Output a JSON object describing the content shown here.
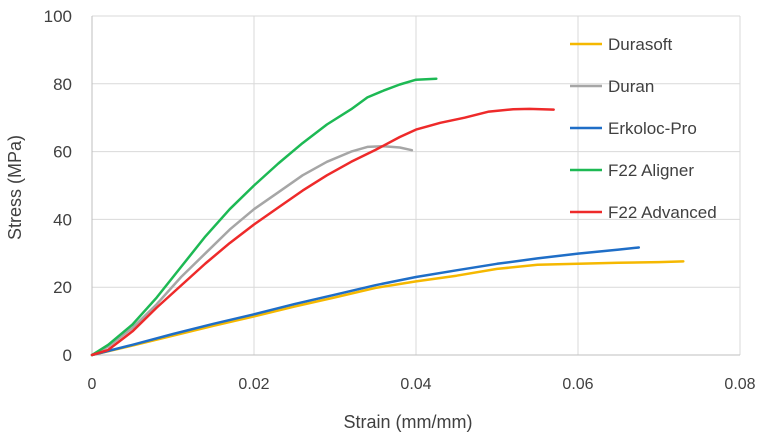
{
  "chart_data": {
    "type": "line",
    "title": "",
    "xlabel": "Strain (mm/mm)",
    "ylabel": "Stress (MPa)",
    "xlim": [
      0,
      0.08
    ],
    "ylim": [
      0,
      100
    ],
    "x_ticks": [
      0,
      0.02,
      0.04,
      0.06,
      0.08
    ],
    "x_tick_labels": [
      "0",
      "0.02",
      "0.04",
      "0.06",
      "0.08"
    ],
    "y_ticks": [
      0,
      20,
      40,
      60,
      80,
      100
    ],
    "y_tick_labels": [
      "0",
      "20",
      "40",
      "60",
      "80",
      "100"
    ],
    "grid": true,
    "legend": "right",
    "series": [
      {
        "name": "Durasoft",
        "color": "#f5b800",
        "x": [
          0,
          0.005,
          0.01,
          0.015,
          0.02,
          0.025,
          0.03,
          0.035,
          0.04,
          0.045,
          0.05,
          0.055,
          0.06,
          0.065,
          0.07,
          0.073
        ],
        "y": [
          0,
          2.8,
          5.7,
          8.6,
          11.4,
          14.3,
          17,
          19.8,
          21.7,
          23.4,
          25.4,
          26.6,
          26.9,
          27.2,
          27.4,
          27.6
        ]
      },
      {
        "name": "Duran",
        "color": "#a6a6a6",
        "x": [
          0,
          0.002,
          0.005,
          0.008,
          0.011,
          0.014,
          0.017,
          0.02,
          0.023,
          0.026,
          0.029,
          0.032,
          0.034,
          0.036,
          0.038,
          0.0395
        ],
        "y": [
          0,
          2.5,
          8,
          15,
          23,
          30,
          37,
          43,
          48,
          53,
          57,
          60,
          61.4,
          61.6,
          61.2,
          60.4
        ]
      },
      {
        "name": "Erkoloc-Pro",
        "color": "#1f6ec7",
        "x": [
          0,
          0.005,
          0.01,
          0.015,
          0.02,
          0.025,
          0.03,
          0.035,
          0.04,
          0.045,
          0.05,
          0.055,
          0.06,
          0.065,
          0.0675
        ],
        "y": [
          0,
          3,
          6.2,
          9.2,
          12,
          15,
          17.8,
          20.6,
          23,
          25,
          26.9,
          28.5,
          29.9,
          31.1,
          31.7
        ]
      },
      {
        "name": "F22 Aligner",
        "color": "#1db954",
        "x": [
          0,
          0.002,
          0.005,
          0.008,
          0.011,
          0.014,
          0.017,
          0.02,
          0.023,
          0.026,
          0.029,
          0.032,
          0.034,
          0.036,
          0.038,
          0.04,
          0.0425
        ],
        "y": [
          0,
          3,
          9,
          17,
          26,
          35,
          43,
          50,
          56.5,
          62.5,
          68,
          72.5,
          76,
          78,
          79.8,
          81.2,
          81.5
        ]
      },
      {
        "name": "F22 Advanced",
        "color": "#ee2a2a",
        "x": [
          0,
          0.002,
          0.005,
          0.008,
          0.011,
          0.014,
          0.017,
          0.02,
          0.023,
          0.026,
          0.029,
          0.032,
          0.035,
          0.038,
          0.04,
          0.043,
          0.046,
          0.049,
          0.052,
          0.054,
          0.057
        ],
        "y": [
          0,
          1.5,
          7,
          14,
          20.5,
          27,
          33,
          38.5,
          43.5,
          48.5,
          53,
          57,
          60.5,
          64.3,
          66.5,
          68.5,
          70,
          71.8,
          72.5,
          72.6,
          72.4
        ]
      }
    ]
  }
}
